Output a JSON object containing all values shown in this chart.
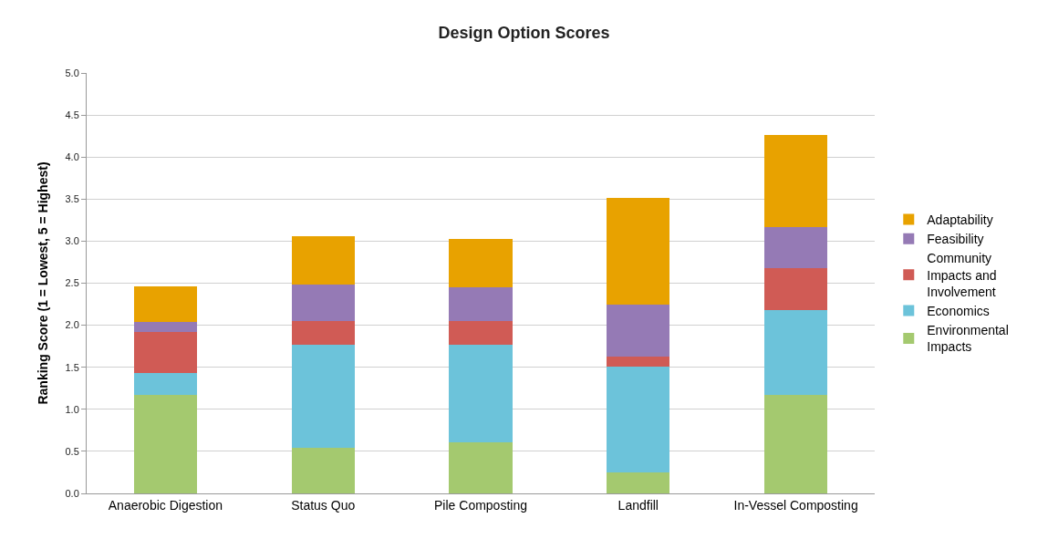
{
  "chart_data": {
    "type": "bar",
    "title": "Design Option Scores",
    "ylabel": "Ranking Score (1 = Lowest, 5 = Highest)",
    "stacked": true,
    "legend": "right",
    "grid": "y",
    "categories": [
      "Anaerobic Digestion",
      "Status Quo",
      "Pile Composting",
      "Landfill",
      "In-Vessel Composting"
    ],
    "ylim": [
      0,
      5
    ],
    "yticks": [
      {
        "value": 0,
        "label": "0.0"
      },
      {
        "value": 0.5,
        "label": "0.5"
      },
      {
        "value": 1,
        "label": "1.0"
      },
      {
        "value": 1.5,
        "label": "1.5"
      },
      {
        "value": 2,
        "label": "2.0"
      },
      {
        "value": 2.5,
        "label": "2.5"
      },
      {
        "value": 3,
        "label": "3.0"
      },
      {
        "value": 3.5,
        "label": "3.5"
      },
      {
        "value": 4,
        "label": "4.0"
      },
      {
        "value": 4.5,
        "label": "4.5"
      },
      {
        "value": 5,
        "label": "5.0"
      }
    ],
    "series": [
      {
        "name": "Environmental Impacts",
        "color": "#a4c96f",
        "values": [
          1.17,
          0.54,
          0.61,
          0.25,
          1.17
        ]
      },
      {
        "name": "Economics",
        "color": "#6cc3da",
        "values": [
          0.26,
          1.23,
          1.16,
          1.26,
          1.01
        ]
      },
      {
        "name": "Community Impacts and Involvement",
        "color": "#d05b55",
        "values": [
          0.49,
          0.28,
          0.28,
          0.12,
          0.5
        ]
      },
      {
        "name": "Feasibility",
        "color": "#957ab5",
        "values": [
          0.12,
          0.43,
          0.4,
          0.62,
          0.49
        ]
      },
      {
        "name": "Adaptability",
        "color": "#e8a200",
        "values": [
          0.42,
          0.58,
          0.58,
          1.26,
          1.09
        ]
      }
    ]
  }
}
